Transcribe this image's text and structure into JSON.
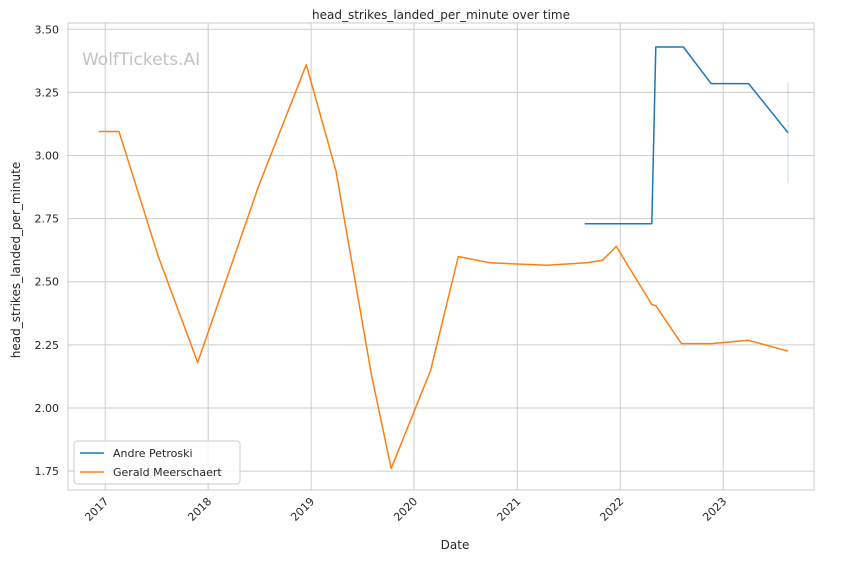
{
  "chart_data": {
    "type": "line",
    "title": "head_strikes_landed_per_minute over time",
    "xlabel": "Date",
    "ylabel": "head_strikes_landed_per_minute",
    "watermark": "WolfTickets.AI",
    "xlim": [
      "2016-08-22",
      "2023-11-19"
    ],
    "ylim": [
      1.675,
      3.525
    ],
    "x_ticks": [
      "2017-01-01",
      "2018-01-01",
      "2019-01-01",
      "2020-01-01",
      "2021-01-01",
      "2022-01-01",
      "2023-01-01"
    ],
    "x_tick_labels": [
      "2017",
      "2018",
      "2019",
      "2020",
      "2021",
      "2022",
      "2023"
    ],
    "y_ticks": [
      1.75,
      2.0,
      2.25,
      2.5,
      2.75,
      3.0,
      3.25,
      3.5
    ],
    "y_tick_labels": [
      "1.75",
      "2.00",
      "2.25",
      "2.50",
      "2.75",
      "3.00",
      "3.25",
      "3.50"
    ],
    "grid": true,
    "legend_position": "lower-left",
    "series": [
      {
        "name": "Andre Petroski",
        "color": "#1f77b4",
        "points": [
          {
            "x": "2021-08-28",
            "y": 2.73
          },
          {
            "x": "2022-04-23",
            "y": 2.73
          },
          {
            "x": "2022-05-07",
            "y": 3.43
          },
          {
            "x": "2022-08-13",
            "y": 3.43
          },
          {
            "x": "2022-11-19",
            "y": 3.285
          },
          {
            "x": "2023-04-01",
            "y": 3.285
          },
          {
            "x": "2023-08-19",
            "y": 3.09
          }
        ],
        "error_band": {
          "x": "2023-08-19",
          "low": 2.89,
          "high": 3.29
        }
      },
      {
        "name": "Gerald Meerschaert",
        "color": "#ff7f0e",
        "points": [
          {
            "x": "2016-12-09",
            "y": 3.095
          },
          {
            "x": "2017-02-19",
            "y": 3.095
          },
          {
            "x": "2017-07-08",
            "y": 2.6
          },
          {
            "x": "2017-11-25",
            "y": 2.18
          },
          {
            "x": "2018-06-29",
            "y": 2.88
          },
          {
            "x": "2018-12-15",
            "y": 3.36
          },
          {
            "x": "2019-03-30",
            "y": 2.94
          },
          {
            "x": "2019-08-03",
            "y": 2.13
          },
          {
            "x": "2019-10-12",
            "y": 1.76
          },
          {
            "x": "2020-02-29",
            "y": 2.15
          },
          {
            "x": "2020-06-06",
            "y": 2.6
          },
          {
            "x": "2020-09-26",
            "y": 2.575
          },
          {
            "x": "2021-04-17",
            "y": 2.565
          },
          {
            "x": "2021-09-04",
            "y": 2.575
          },
          {
            "x": "2021-10-30",
            "y": 2.585
          },
          {
            "x": "2021-12-18",
            "y": 2.64
          },
          {
            "x": "2022-04-23",
            "y": 2.41
          },
          {
            "x": "2022-05-07",
            "y": 2.405
          },
          {
            "x": "2022-08-06",
            "y": 2.255
          },
          {
            "x": "2022-11-19",
            "y": 2.255
          },
          {
            "x": "2023-04-01",
            "y": 2.268
          },
          {
            "x": "2023-08-19",
            "y": 2.225
          }
        ]
      }
    ]
  }
}
